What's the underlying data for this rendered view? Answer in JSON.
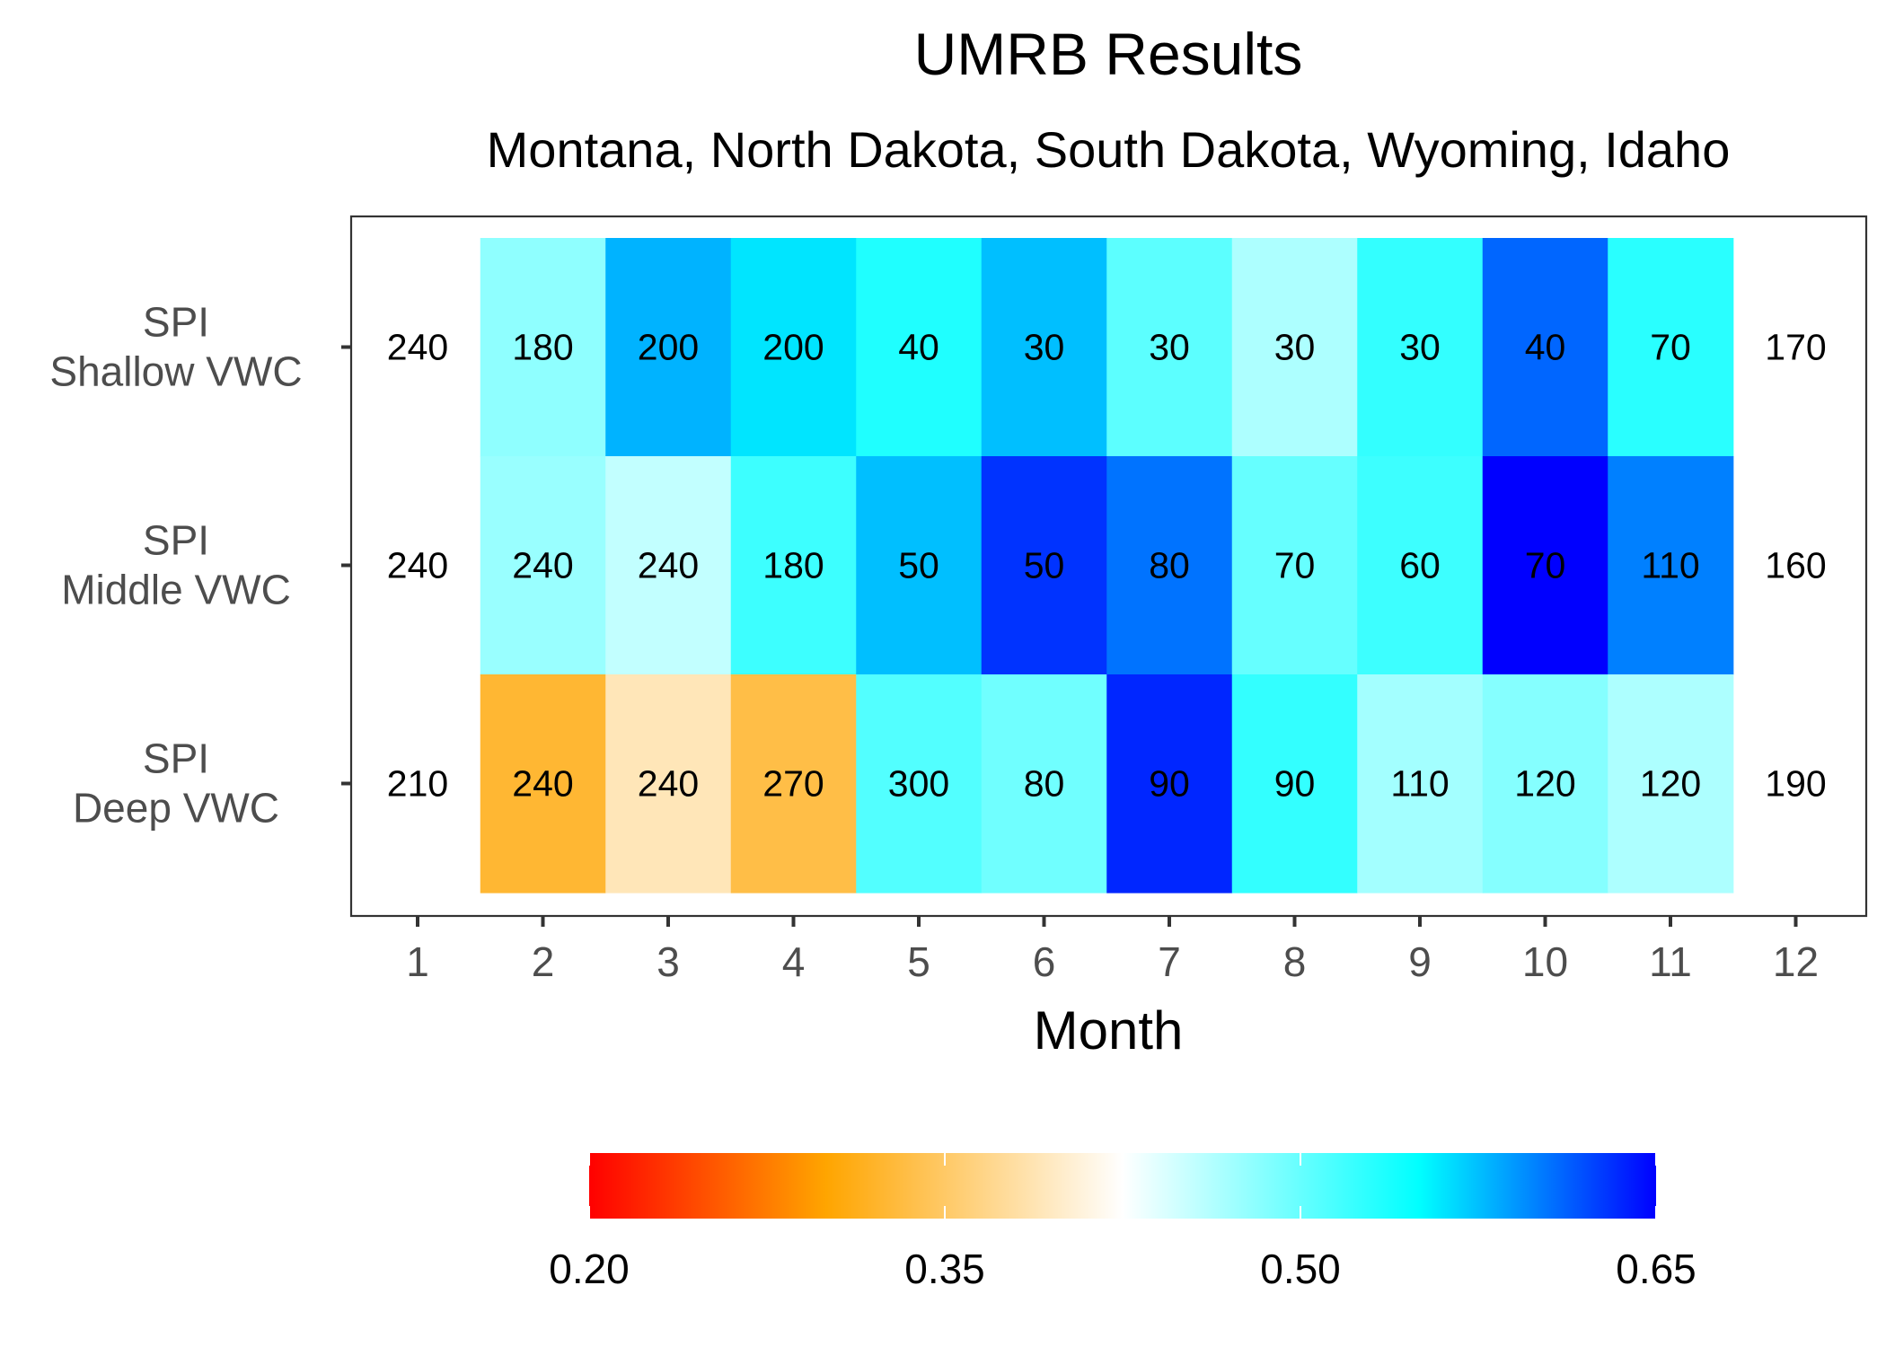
{
  "chart_data": {
    "type": "heatmap",
    "title": "UMRB Results",
    "subtitle": "Montana, North Dakota, South Dakota, Wyoming, Idaho",
    "xlabel": "Month",
    "ylabel": "",
    "x": [
      "1",
      "2",
      "3",
      "4",
      "5",
      "6",
      "7",
      "8",
      "9",
      "10",
      "11",
      "12"
    ],
    "y": [
      "SPI\nShallow VWC",
      "SPI\nMiddle VWC",
      "SPI\nDeep VWC"
    ],
    "y_lines": [
      [
        "SPI",
        "Shallow VWC"
      ],
      [
        "SPI",
        "Middle VWC"
      ],
      [
        "SPI",
        "Deep VWC"
      ]
    ],
    "labels": [
      [
        "240",
        "180",
        "200",
        "200",
        "40",
        "30",
        "30",
        "30",
        "30",
        "40",
        "70",
        "170"
      ],
      [
        "240",
        "240",
        "240",
        "180",
        "50",
        "50",
        "80",
        "70",
        "60",
        "70",
        "110",
        "160"
      ],
      [
        "210",
        "240",
        "240",
        "270",
        "300",
        "80",
        "90",
        "90",
        "110",
        "120",
        "120",
        "190"
      ]
    ],
    "values": [
      [
        null,
        0.48,
        0.58,
        0.56,
        0.535,
        0.575,
        0.505,
        0.465,
        0.525,
        0.61,
        0.53,
        null
      ],
      [
        null,
        0.475,
        0.455,
        0.52,
        0.575,
        0.63,
        0.605,
        0.5,
        0.52,
        0.655,
        0.6,
        null
      ],
      [
        null,
        0.325,
        0.39,
        0.335,
        0.51,
        0.495,
        0.635,
        0.525,
        0.47,
        0.485,
        0.465,
        null
      ]
    ],
    "colorbar": {
      "min": 0.2,
      "max": 0.65,
      "ticks": [
        "0.20",
        "0.35",
        "0.50",
        "0.65"
      ],
      "tick_values": [
        0.2,
        0.35,
        0.5,
        0.65
      ],
      "stops": [
        {
          "value": 0.2,
          "color": "#ff0000"
        },
        {
          "value": 0.3,
          "color": "#ffa500"
        },
        {
          "value": 0.425,
          "color": "#ffffff"
        },
        {
          "value": 0.55,
          "color": "#00ffff"
        },
        {
          "value": 0.65,
          "color": "#0000ff"
        }
      ]
    },
    "legend_position": "bottom",
    "grid": false
  }
}
